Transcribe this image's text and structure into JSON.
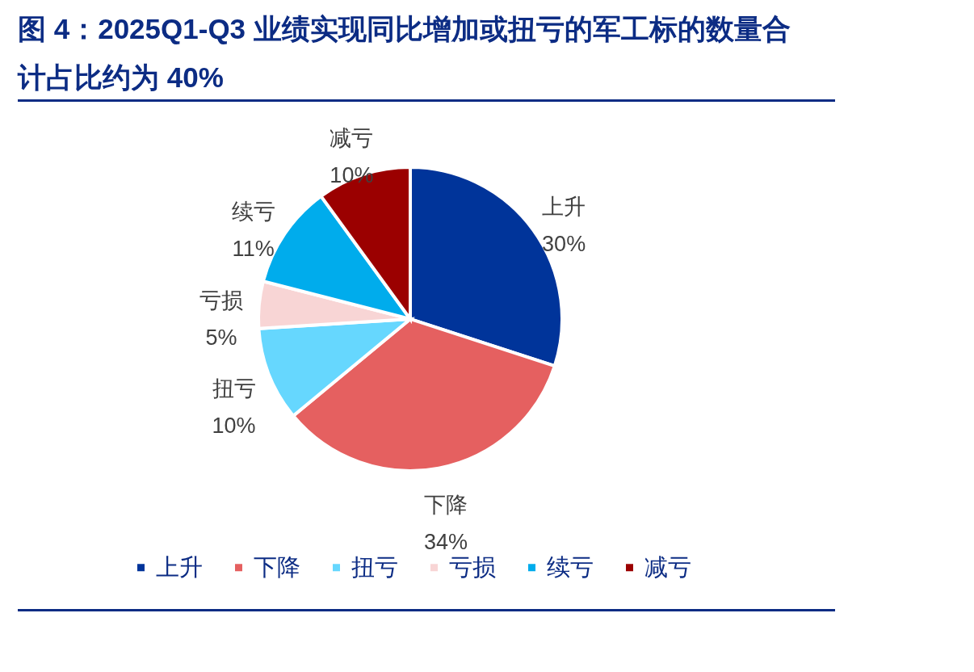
{
  "chart_data": {
    "type": "pie",
    "title": "图 4：2025Q1-Q3 业绩实现同比增加或扭亏的军工标的数量合计占比约为 40%",
    "categories": [
      "上升",
      "下降",
      "扭亏",
      "亏损",
      "续亏",
      "减亏"
    ],
    "values": [
      30,
      34,
      10,
      5,
      11,
      10
    ],
    "value_labels": [
      "30%",
      "34%",
      "10%",
      "5%",
      "11%",
      "10%"
    ],
    "colors": [
      "#00349a",
      "#e56060",
      "#66d7fe",
      "#f8d5d5",
      "#00acec",
      "#9b0000"
    ],
    "data_labels": true,
    "legend": "bottom"
  }
}
